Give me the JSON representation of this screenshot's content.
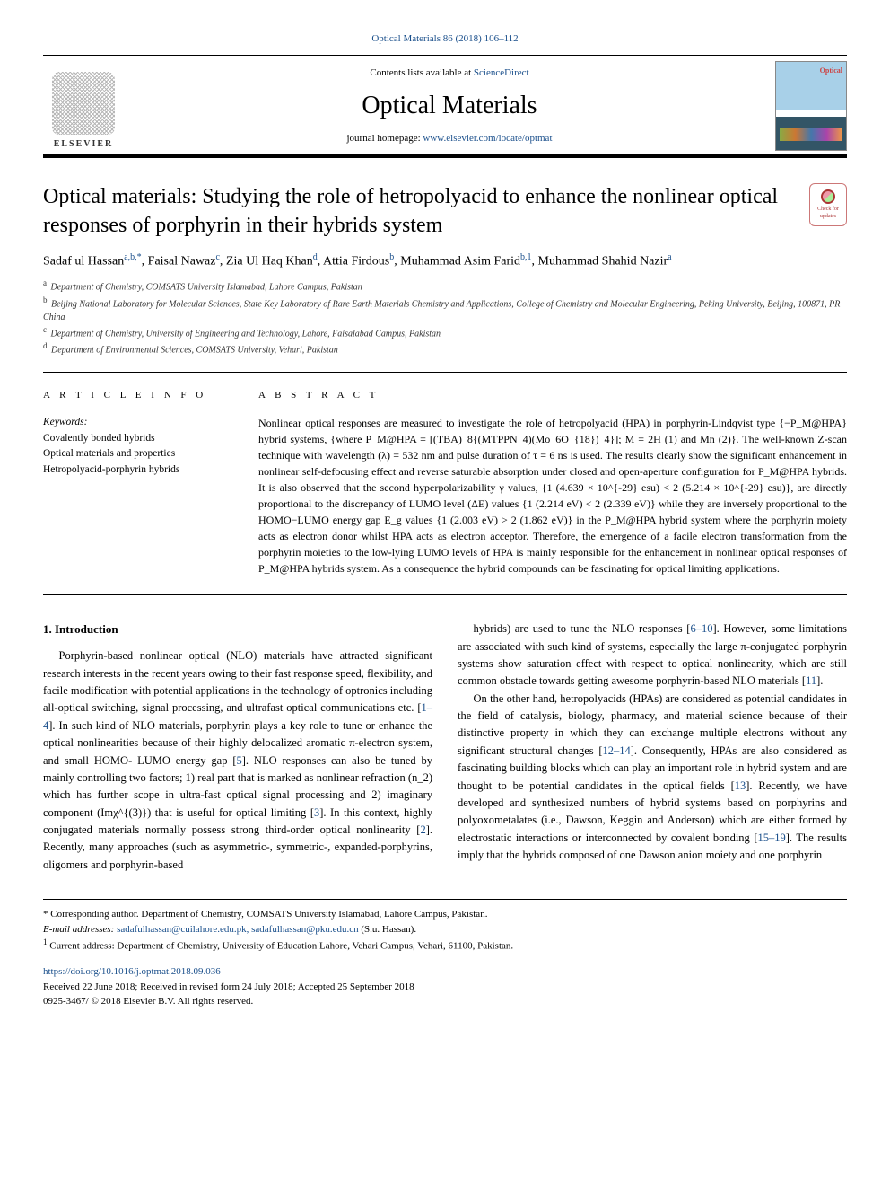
{
  "topCitation": "Optical Materials 86 (2018) 106–112",
  "header": {
    "contentsPrefix": "Contents lists available at ",
    "contentsLink": "ScienceDirect",
    "journal": "Optical Materials",
    "homepagePrefix": "journal homepage: ",
    "homepageLink": "www.elsevier.com/locate/optmat",
    "elsevierLabel": "ELSEVIER"
  },
  "checkBadge": "Check for updates",
  "title": "Optical materials: Studying the role of hetropolyacid to enhance the nonlinear optical responses of porphyrin in their hybrids system",
  "authorsHtml": "Sadaf ul Hassan<a>a,b,*</a>, Faisal Nawaz<a>c</a>, Zia Ul Haq Khan<a>d</a>, Attia Firdous<a>b</a>, Muhammad Asim Farid<a>b,1</a>, Muhammad Shahid Nazir<a>a</a>",
  "affiliations": [
    {
      "sup": "a",
      "text": "Department of Chemistry, COMSATS University Islamabad, Lahore Campus, Pakistan"
    },
    {
      "sup": "b",
      "text": "Beijing National Laboratory for Molecular Sciences, State Key Laboratory of Rare Earth Materials Chemistry and Applications, College of Chemistry and Molecular Engineering, Peking University, Beijing, 100871, PR China"
    },
    {
      "sup": "c",
      "text": "Department of Chemistry, University of Engineering and Technology, Lahore, Faisalabad Campus, Pakistan"
    },
    {
      "sup": "d",
      "text": "Department of Environmental Sciences, COMSATS University, Vehari, Pakistan"
    }
  ],
  "info": {
    "head": "A R T I C L E  I N F O",
    "kwHead": "Keywords:",
    "keywords": [
      "Covalently bonded hybrids",
      "Optical materials and properties",
      "Hetropolyacid-porphyrin hybrids"
    ]
  },
  "abstract": {
    "head": "A B S T R A C T",
    "text": "Nonlinear optical responses are measured to investigate the role of hetropolyacid (HPA) in porphyrin-Lindqvist type {−P_M@HPA} hybrid systems, {where P_M@HPA = [(TBA)_8{(MTPPN_4)(Mo_6O_{18})_4}]; M = 2H (1) and Mn (2)}. The well-known Z-scan technique with wavelength (λ) = 532 nm and pulse duration of τ = 6 ns is used. The results clearly show the significant enhancement in nonlinear self-defocusing effect and reverse saturable absorption under closed and open-aperture configuration for P_M@HPA hybrids. It is also observed that the second hyperpolarizability γ values, {1 (4.639 × 10^{-29} esu) < 2 (5.214 × 10^{-29} esu)}, are directly proportional to the discrepancy of LUMO level (ΔE) values {1 (2.214 eV) < 2 (2.339 eV)} while they are inversely proportional to the HOMO−LUMO energy gap E_g values {1 (2.003 eV) > 2 (1.862 eV)} in the P_M@HPA hybrid system where the porphyrin moiety acts as electron donor whilst HPA acts as electron acceptor. Therefore, the emergence of a facile electron transformation from the porphyrin moieties to the low-lying LUMO levels of HPA is mainly responsible for the enhancement in nonlinear optical responses of P_M@HPA hybrids system. As a consequence the hybrid compounds can be fascinating for optical limiting applications."
  },
  "body": {
    "sectionHead": "1. Introduction",
    "leftParas": [
      "Porphyrin-based nonlinear optical (NLO) materials have attracted significant research interests in the recent years owing to their fast response speed, flexibility, and facile modification with potential applications in the technology of optronics including all-optical switching, signal processing, and ultrafast optical communications etc. [1–4]. In such kind of NLO materials, porphyrin plays a key role to tune or enhance the optical nonlinearities because of their highly delocalized aromatic π-electron system, and small HOMO- LUMO energy gap [5]. NLO responses can also be tuned by mainly controlling two factors; 1) real part that is marked as nonlinear refraction (n_2) which has further scope in ultra-fast optical signal processing and 2) imaginary component (Imχ^{(3)}) that is useful for optical limiting [3]. In this context, highly conjugated materials normally possess strong third-order optical nonlinearity [2]. Recently, many approaches (such as asymmetric-, symmetric-, expanded-porphyrins, oligomers and porphyrin-based"
    ],
    "rightParas": [
      "hybrids) are used to tune the NLO responses [6–10]. However, some limitations are associated with such kind of systems, especially the large π-conjugated porphyrin systems show saturation effect with respect to optical nonlinearity, which are still common obstacle towards getting awesome porphyrin-based NLO materials [11].",
      "On the other hand, hetropolyacids (HPAs) are considered as potential candidates in the field of catalysis, biology, pharmacy, and material science because of their distinctive property in which they can exchange multiple electrons without any significant structural changes [12–14]. Consequently, HPAs are also considered as fascinating building blocks which can play an important role in hybrid system and are thought to be potential candidates in the optical fields [13]. Recently, we have developed and synthesized numbers of hybrid systems based on porphyrins and polyoxometalates (i.e., Dawson, Keggin and Anderson) which are either formed by electrostatic interactions or interconnected by covalent bonding [15–19]. The results imply that the hybrids composed of one Dawson anion moiety and one porphyrin"
    ]
  },
  "footnotes": {
    "corr": "* Corresponding author. Department of Chemistry, COMSATS University Islamabad, Lahore Campus, Pakistan.",
    "emailLabel": "E-mail addresses: ",
    "emails": "sadafulhassan@cuilahore.edu.pk, sadafulhassan@pku.edu.cn",
    "emailSuffix": " (S.u. Hassan).",
    "note1": "Current address: Department of Chemistry, University of Education Lahore, Vehari Campus, Vehari, 61100, Pakistan."
  },
  "footer": {
    "doi": "https://doi.org/10.1016/j.optmat.2018.09.036",
    "received": "Received 22 June 2018; Received in revised form 24 July 2018; Accepted 25 September 2018",
    "copyright": "0925-3467/ © 2018 Elsevier B.V. All rights reserved."
  },
  "colors": {
    "link": "#1a4f8b",
    "rule": "#000000",
    "text": "#000000"
  }
}
